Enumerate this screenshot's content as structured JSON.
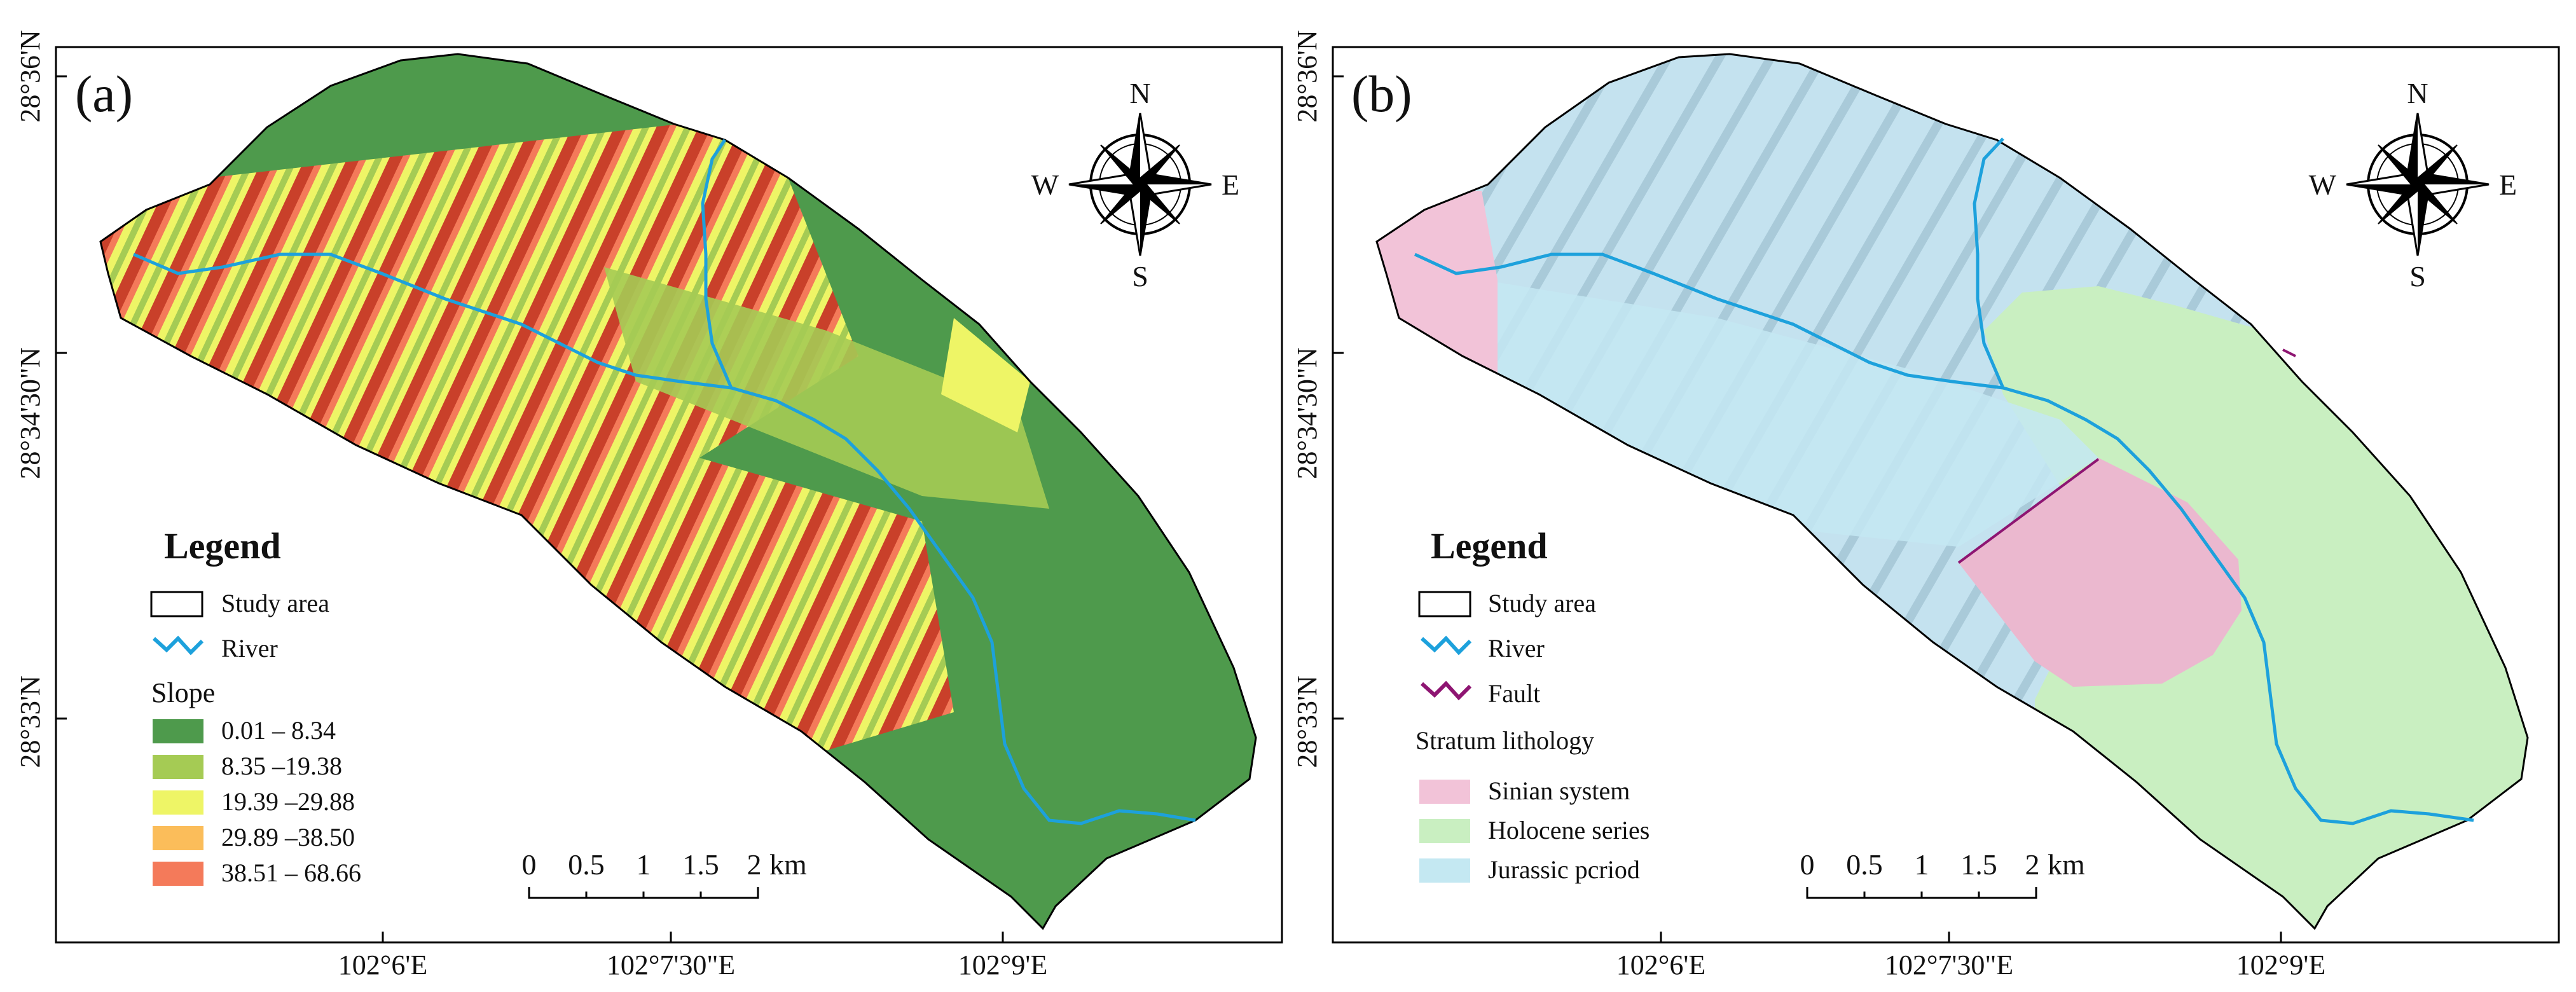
{
  "panels": [
    {
      "label": "(a)",
      "lat_ticks": [
        "28°36'N",
        "28°34'30\"N",
        "28°33'N"
      ],
      "lon_ticks": [
        "102°6'E",
        "102°7'30\"E",
        "102°9'E"
      ],
      "compass": {
        "n": "N",
        "s": "S",
        "e": "E",
        "w": "W"
      },
      "legend": {
        "title": "Legend",
        "study_area": "Study area",
        "river": "River",
        "slope_title": "Slope",
        "classes": [
          {
            "label": "0.01 – 8.34",
            "color": "#4e9a4c"
          },
          {
            "label": "8.35 –19.38",
            "color": "#a5cb54"
          },
          {
            "label": "19.39 –29.88",
            "color": "#eef566"
          },
          {
            "label": "29.89 –38.50",
            "color": "#fbbd5a"
          },
          {
            "label": "38.51 – 68.66",
            "color": "#f47a5a"
          }
        ]
      },
      "scalebar": {
        "ticks": [
          "0",
          "0.5",
          "1",
          "1.5",
          "2"
        ],
        "unit": "km"
      }
    },
    {
      "label": "(b)",
      "lat_ticks": [
        "28°36'N",
        "28°34'30\"N",
        "28°33'N"
      ],
      "lon_ticks": [
        "102°6'E",
        "102°7'30\"E",
        "102°9'E"
      ],
      "compass": {
        "n": "N",
        "s": "S",
        "e": "E",
        "w": "W"
      },
      "legend": {
        "title": "Legend",
        "study_area": "Study area",
        "river": "River",
        "fault": "Fault",
        "stratum_title": "Stratum lithology",
        "classes": [
          {
            "label": "Sinian system",
            "color": "#f2c3d8"
          },
          {
            "label": "Holocene series",
            "color": "#c9efc1"
          },
          {
            "label": "Jurassic pcriod",
            "color": "#c4e8f2"
          }
        ]
      },
      "scalebar": {
        "ticks": [
          "0",
          "0.5",
          "1",
          "1.5",
          "2"
        ],
        "unit": "km"
      }
    }
  ],
  "colors": {
    "river": "#1da1dc",
    "fault": "#8e1572",
    "frame": "#000000"
  }
}
